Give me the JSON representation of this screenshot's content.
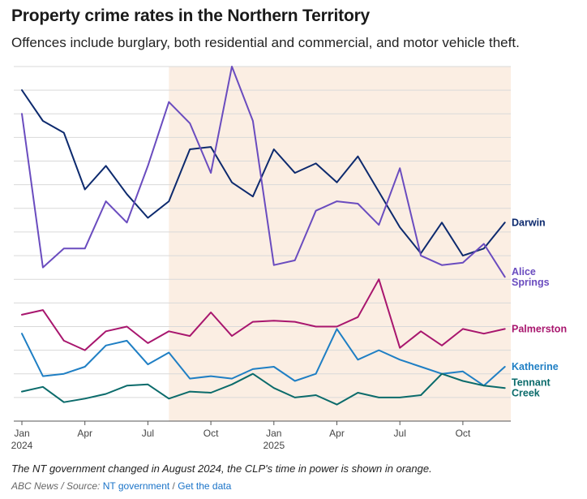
{
  "header": {
    "title": "Property crime rates in the Northern Territory",
    "subtitle": "Offences include burglary, both residential and commercial, and motor vehicle theft."
  },
  "footer": {
    "note": "The NT government changed in August 2024, the CLP's time in power is shown in orange.",
    "credit_outlet": "ABC News",
    "credit_sep": " / ",
    "credit_prefix": "Source: ",
    "source_link": "NT government",
    "data_sep": " / ",
    "data_link": "Get the data"
  },
  "chart_data": {
    "type": "line",
    "title": "Property crime rates in the Northern Territory",
    "subtitle": "Offences include burglary, both residential and commercial, and motor vehicle theft.",
    "xlabel": "",
    "ylabel": "",
    "x": [
      "Jan 2024",
      "Feb 2024",
      "Mar 2024",
      "Apr 2024",
      "May 2024",
      "Jun 2024",
      "Jul 2024",
      "Aug 2024",
      "Sep 2024",
      "Oct 2024",
      "Nov 2024",
      "Dec 2024",
      "Jan 2025",
      "Feb 2025",
      "Mar 2025",
      "Apr 2025",
      "May 2025",
      "Jun 2025",
      "Jul 2025",
      "Aug 2025",
      "Sep 2025",
      "Oct 2025",
      "Nov 2025",
      "Dec 2025"
    ],
    "x_ticks": [
      {
        "index": 0,
        "label": "Jan",
        "sublabel": "2024"
      },
      {
        "index": 3,
        "label": "Apr"
      },
      {
        "index": 6,
        "label": "Jul"
      },
      {
        "index": 9,
        "label": "Oct"
      },
      {
        "index": 12,
        "label": "Jan",
        "sublabel": "2025"
      },
      {
        "index": 15,
        "label": "Apr"
      },
      {
        "index": 18,
        "label": "Jul"
      },
      {
        "index": 21,
        "label": "Oct"
      }
    ],
    "ylim": [
      0,
      15
    ],
    "gridlines": 15,
    "y_tick_labels": false,
    "highlight": {
      "start_index": 7,
      "end_index": 23.4,
      "color": "#fbeee3",
      "label": "CLP government"
    },
    "series": [
      {
        "name": "Darwin",
        "label_lines": [
          "Darwin"
        ],
        "color": "#0d2a6e",
        "values": [
          14.0,
          12.7,
          12.2,
          9.8,
          10.8,
          9.6,
          8.6,
          9.3,
          11.5,
          11.6,
          10.1,
          9.5,
          11.5,
          10.5,
          10.9,
          10.1,
          11.2,
          9.7,
          8.2,
          7.1,
          8.4,
          7.0,
          7.3,
          8.4
        ]
      },
      {
        "name": "Alice Springs",
        "label_lines": [
          "Alice",
          "Springs"
        ],
        "color": "#6a4cbf",
        "values": [
          13.0,
          6.5,
          7.3,
          7.3,
          9.3,
          8.4,
          10.8,
          13.5,
          12.6,
          10.5,
          15.0,
          12.7,
          6.6,
          6.8,
          8.9,
          9.3,
          9.2,
          8.3,
          10.7,
          7.0,
          6.6,
          6.7,
          7.5,
          6.1
        ]
      },
      {
        "name": "Palmerston",
        "label_lines": [
          "Palmerston"
        ],
        "color": "#a8166e",
        "values": [
          4.5,
          4.7,
          3.4,
          3.0,
          3.8,
          4.0,
          3.3,
          3.8,
          3.6,
          4.6,
          3.6,
          4.2,
          4.25,
          4.2,
          4.0,
          4.0,
          4.4,
          6.0,
          3.1,
          3.8,
          3.2,
          3.9,
          3.7,
          3.9
        ]
      },
      {
        "name": "Katherine",
        "label_lines": [
          "Katherine"
        ],
        "color": "#1f7fc4",
        "values": [
          3.7,
          1.9,
          2.0,
          2.3,
          3.2,
          3.4,
          2.4,
          2.9,
          1.8,
          1.9,
          1.8,
          2.2,
          2.3,
          1.7,
          2.0,
          3.9,
          2.6,
          3.0,
          2.6,
          2.3,
          2.0,
          2.1,
          1.5,
          2.3
        ]
      },
      {
        "name": "Tennant Creek",
        "label_lines": [
          "Tennant",
          "Creek"
        ],
        "color": "#0b6b6b",
        "values": [
          1.25,
          1.45,
          0.8,
          0.95,
          1.15,
          1.5,
          1.55,
          0.95,
          1.25,
          1.2,
          1.55,
          2.0,
          1.4,
          1.0,
          1.1,
          0.7,
          1.2,
          1.0,
          1.0,
          1.1,
          2.0,
          1.7,
          1.5,
          1.4
        ]
      }
    ]
  }
}
